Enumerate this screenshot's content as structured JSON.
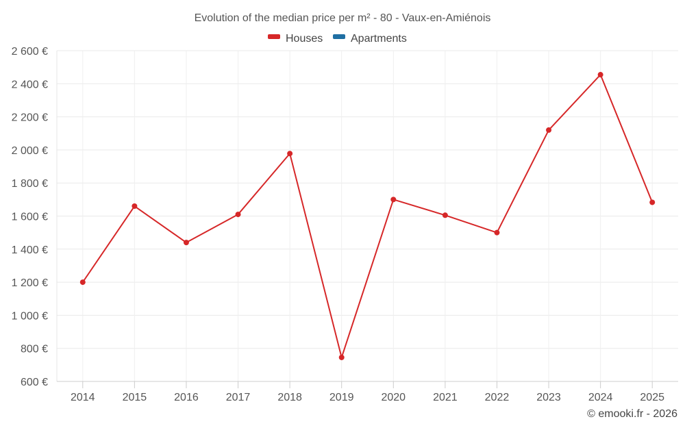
{
  "chart_data": {
    "type": "line",
    "title": "Evolution of the median price per m² - 80 - Vaux-en-Amiénois",
    "legend": [
      {
        "name": "Houses",
        "color": "#d62728"
      },
      {
        "name": "Apartments",
        "color": "#1f6fa3"
      }
    ],
    "categories": [
      "2014",
      "2015",
      "2016",
      "2017",
      "2018",
      "2019",
      "2020",
      "2021",
      "2022",
      "2023",
      "2024",
      "2025"
    ],
    "series": [
      {
        "name": "Houses",
        "color": "#d62728",
        "values": [
          1200,
          1660,
          1440,
          1610,
          1978,
          745,
          1700,
          1605,
          1500,
          2120,
          2455,
          1683
        ]
      }
    ],
    "ylim": [
      600,
      2600
    ],
    "yticks": [
      600,
      800,
      1000,
      1200,
      1400,
      1600,
      1800,
      2000,
      2200,
      2400,
      2600
    ],
    "ytick_labels": [
      "600 €",
      "800 €",
      "1 000 €",
      "1 200 €",
      "1 400 €",
      "1 600 €",
      "1 800 €",
      "2 000 €",
      "2 200 €",
      "2 400 €",
      "2 600 €"
    ],
    "xlabel": "",
    "ylabel": "",
    "grid": true,
    "credit": "© emooki.fr - 2026"
  }
}
